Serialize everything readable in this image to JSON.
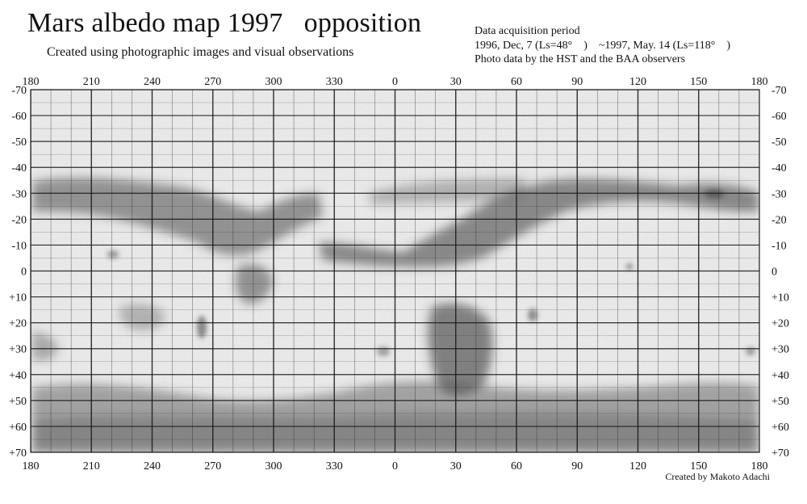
{
  "title": "Mars albedo map 1997   opposition",
  "subtitle": "Created using photographic images and visual observations",
  "info": {
    "heading": "Data acquisition period",
    "period": "1996, Dec, 7 (Ls=48°　)　~1997, May. 14 (Ls=118°　)",
    "source": "Photo data by the HST and the BAA observers"
  },
  "credit": "Created by Makoto Adachi",
  "map": {
    "longitude_labels": [
      "180",
      "210",
      "240",
      "270",
      "300",
      "330",
      "0",
      "30",
      "60",
      "90",
      "120",
      "150",
      "180"
    ],
    "latitude_labels": [
      "-70",
      "-60",
      "-50",
      "-40",
      "-30",
      "-20",
      "-10",
      "0",
      "+10",
      "+20",
      "+30",
      "+40",
      "+50",
      "+60",
      "+70"
    ],
    "latitudes": [
      -70,
      -60,
      -50,
      -40,
      -30,
      -20,
      -10,
      0,
      10,
      20,
      30,
      40,
      50,
      60,
      70
    ],
    "longitude_range": [
      180,
      -180
    ],
    "latitude_range": [
      -70,
      70
    ],
    "grid": true
  },
  "colors": {
    "grid": "#1a1a1a",
    "paper": "#ffffff",
    "shade": "#555555"
  }
}
